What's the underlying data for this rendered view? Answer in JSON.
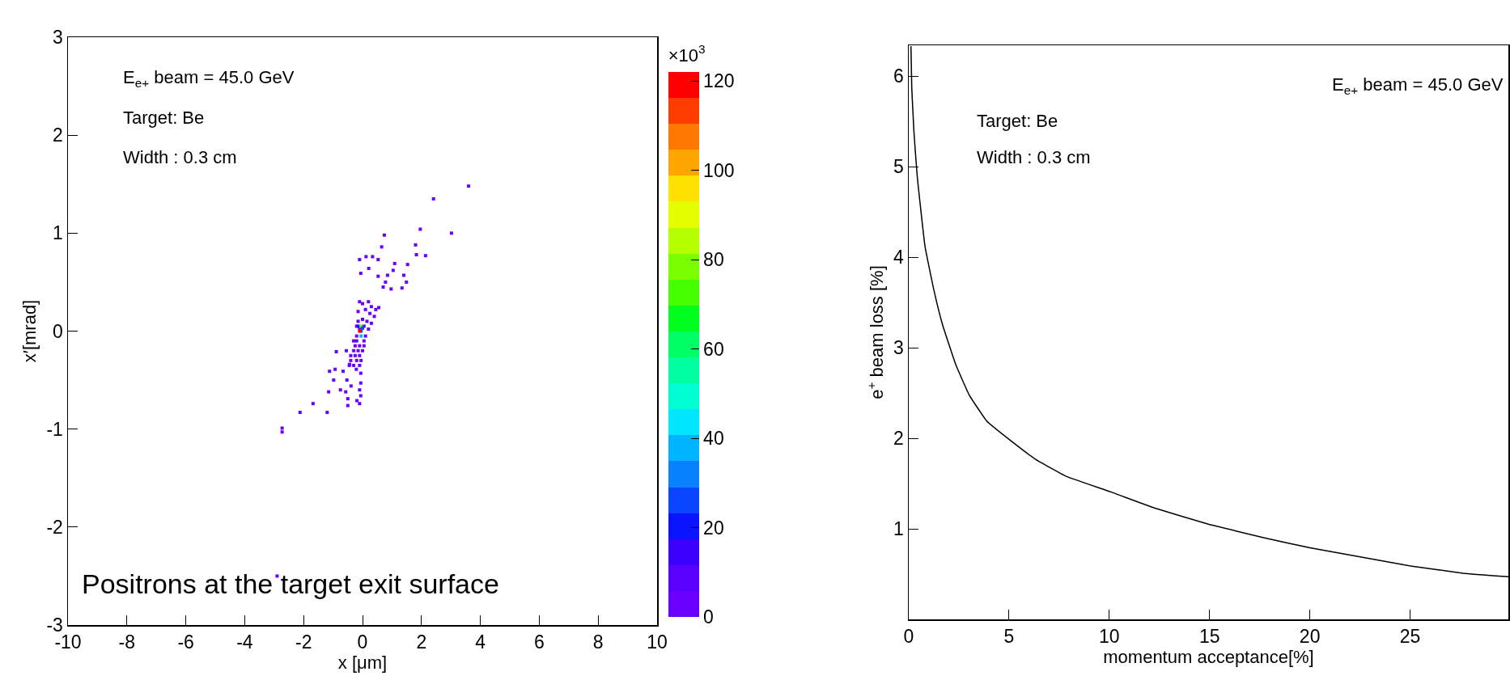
{
  "chart_data": [
    {
      "type": "scatter",
      "xlabel": "x [μm]",
      "ylabel": "x′[mrad]",
      "clabel": "×10$^{3}$",
      "marker": "square",
      "xlim": [
        -10,
        10
      ],
      "xticks": [
        -10,
        -8,
        -6,
        -4,
        -2,
        0,
        2,
        4,
        6,
        8,
        10
      ],
      "ylim": [
        -3,
        3
      ],
      "yticks": [
        -3,
        -2,
        -1,
        0,
        1,
        2,
        3
      ],
      "clim": [
        0,
        122
      ],
      "cticks": [
        0,
        20,
        40,
        60,
        80,
        100,
        120
      ],
      "annotations": [
        "E$_{e+}$ beam = 45.0 GeV",
        "Target: Be",
        "Width : 0.3 cm",
        "Positrons at the target exit surface"
      ],
      "x": [
        3.6,
        2.41,
        1.96,
        3.02,
        0.74,
        0.65,
        1.8,
        1.83,
        2.14,
        -0.1,
        0.12,
        0.34,
        0.53,
        1.09,
        1.53,
        1.04,
        0.85,
        1.4,
        1.49,
        1.34,
        0.97,
        0.7,
        0.78,
        0.53,
        0.21,
        -0.06,
        -0.89,
        -1.12,
        -0.93,
        -0.66,
        -0.98,
        -0.53,
        -0.39,
        -0.06,
        -1.15,
        -0.75,
        -0.57,
        -0.1,
        -0.06,
        -0.5,
        -0.19,
        -0.1,
        -0.5,
        -1.68,
        -2.12,
        -1.2,
        -2.73,
        -2.73,
        -0.06,
        -0.21,
        -0.44,
        -2.9,
        -0.1,
        0.0,
        0.2,
        0.3,
        0.45,
        0.55,
        -0.15,
        0.1,
        0.25,
        0.4,
        -0.15,
        0.0,
        0.15,
        0.3,
        -0.2,
        -0.1,
        0.05,
        0.2,
        -0.2,
        0.1,
        -0.2,
        0.05,
        -0.25,
        -0.1,
        0.05,
        -0.3,
        -0.15,
        0.0,
        -0.4,
        -0.25,
        -0.1,
        -0.55,
        -0.4,
        -0.2,
        -0.05,
        -0.45,
        -0.3,
        -0.1,
        -0.3,
        -0.15,
        -0.05,
        -0.05,
        -0.05,
        -0.1,
        0.0
      ],
      "values": [
        1.48,
        1.35,
        1.04,
        1.0,
        0.98,
        0.86,
        0.88,
        0.78,
        0.77,
        0.73,
        0.76,
        0.76,
        0.73,
        0.69,
        0.68,
        0.62,
        0.57,
        0.57,
        0.5,
        0.44,
        0.43,
        0.45,
        0.5,
        0.56,
        0.64,
        0.59,
        -0.21,
        -0.41,
        -0.39,
        -0.41,
        -0.5,
        -0.5,
        -0.56,
        -0.53,
        -0.62,
        -0.6,
        -0.62,
        -0.6,
        -0.66,
        -0.69,
        -0.71,
        -0.74,
        -0.76,
        -0.74,
        -0.83,
        -0.83,
        -0.99,
        -1.03,
        -0.43,
        -0.39,
        -0.34,
        -2.5,
        0.3,
        0.28,
        0.3,
        0.25,
        0.22,
        0.24,
        0.2,
        0.22,
        0.18,
        0.15,
        0.1,
        0.12,
        0.1,
        0.08,
        0.05,
        0.03,
        0.05,
        0.02,
        -0.05,
        -0.05,
        -0.1,
        -0.1,
        -0.15,
        -0.15,
        -0.15,
        -0.2,
        -0.2,
        -0.2,
        -0.25,
        -0.25,
        -0.25,
        -0.2,
        -0.3,
        -0.3,
        -0.3,
        -0.35,
        -0.35,
        -0.35,
        -0.1,
        0.05,
        0.0,
        0.05,
        -0.05,
        0.0,
        0.03
      ],
      "cvalues": [
        1,
        1,
        1,
        1,
        1,
        1,
        1,
        1,
        1,
        1,
        1,
        1,
        1,
        1,
        1,
        1,
        1,
        1,
        1,
        1,
        1,
        1,
        1,
        1,
        1,
        1,
        1,
        1,
        1,
        1,
        1,
        1,
        1,
        1,
        1,
        1,
        1,
        1,
        1,
        1,
        1,
        1,
        1,
        1,
        1,
        1,
        1,
        1,
        1,
        1,
        1,
        1,
        2,
        2,
        2,
        2,
        2,
        2,
        2,
        2,
        2,
        2,
        3,
        3,
        3,
        2,
        3,
        4,
        3,
        2,
        3,
        3,
        3,
        3,
        2,
        3,
        2,
        2,
        3,
        2,
        2,
        2,
        2,
        1,
        2,
        2,
        2,
        1,
        2,
        2,
        6,
        12,
        25,
        70,
        40,
        118,
        25
      ]
    },
    {
      "type": "line",
      "xlabel": "momentum acceptance[%]",
      "ylabel": "e$^{+}$ beam loss [%]",
      "xlim": [
        0,
        29.9
      ],
      "xticks": [
        0,
        5,
        10,
        15,
        20,
        25
      ],
      "ylim": [
        0,
        6.34
      ],
      "yticks": [
        1,
        2,
        3,
        4,
        5,
        6
      ],
      "annotations": [
        "E$_{e+}$ beam = 45.0 GeV",
        "Target: Be",
        "Width : 0.3 cm"
      ],
      "color": "#000000",
      "x": [
        0.11,
        0.15,
        0.26,
        0.42,
        0.81,
        1.25,
        1.69,
        2.35,
        3.01,
        3.89,
        4.99,
        6.31,
        7.85,
        10.05,
        12.25,
        14.97,
        17.74,
        20.01,
        23.24,
        25.02,
        27.64,
        29.9
      ],
      "values": [
        6.33,
        5.87,
        5.38,
        4.9,
        4.12,
        3.64,
        3.25,
        2.81,
        2.48,
        2.19,
        1.99,
        1.77,
        1.58,
        1.41,
        1.23,
        1.05,
        0.9,
        0.79,
        0.66,
        0.59,
        0.51,
        0.47
      ]
    }
  ]
}
